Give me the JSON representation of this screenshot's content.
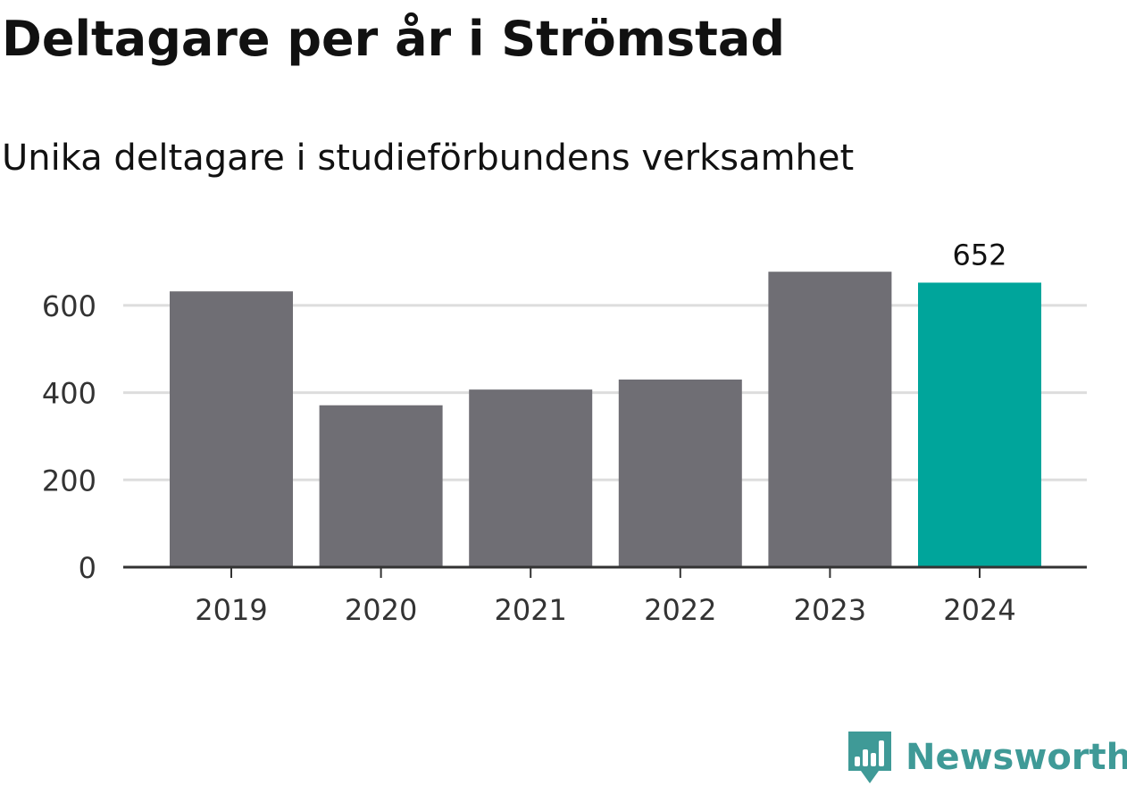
{
  "header": {
    "title": "Deltagare per år i Strömstad",
    "subtitle": "Unika deltagare i studieförbundens verksamhet"
  },
  "brand": {
    "name": "Newsworthy",
    "logo_icon": "newsworthy-bar-logo-icon",
    "color": "#3f9a97"
  },
  "colors": {
    "bar": "#6f6e74",
    "highlight": "#00a59b",
    "grid": "#dddddd",
    "axis": "#333333",
    "tick_text": "#333333"
  },
  "chart_data": {
    "type": "bar",
    "title": "Deltagare per år i Strömstad",
    "subtitle": "Unika deltagare i studieförbundens verksamhet",
    "categories": [
      "2019",
      "2020",
      "2021",
      "2022",
      "2023",
      "2024"
    ],
    "values": [
      632,
      371,
      407,
      430,
      677,
      652
    ],
    "highlight_category": "2024",
    "data_labels": [
      {
        "category": "2024",
        "text": "652"
      }
    ],
    "ylim": [
      0,
      700
    ],
    "yticks": [
      0,
      200,
      400,
      600
    ],
    "grid": true,
    "legend": "none"
  }
}
